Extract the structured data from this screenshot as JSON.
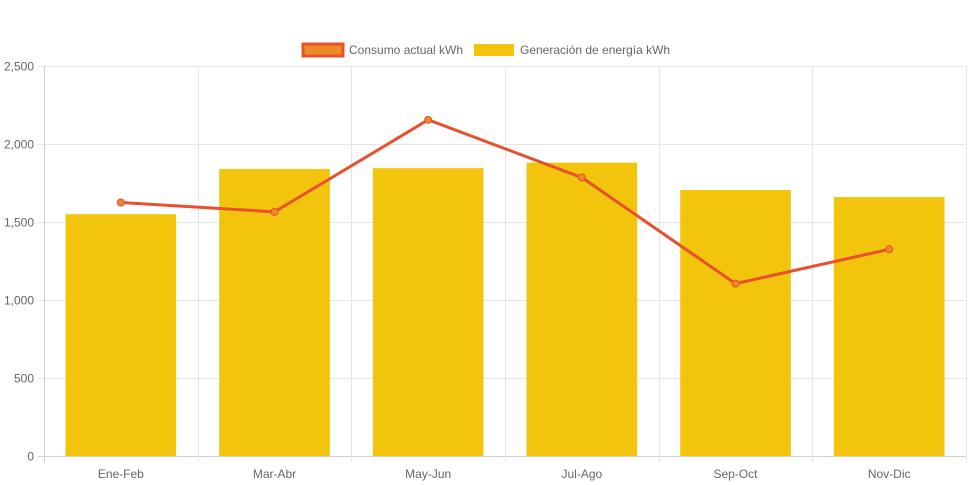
{
  "chart_data": {
    "type": "bar",
    "categories": [
      "Ene-Feb",
      "Mar-Abr",
      "May-Jun",
      "Jul-Ago",
      "Sep-Oct",
      "Nov-Dic"
    ],
    "series": [
      {
        "name": "Consumo actual kWh",
        "type": "line",
        "values": [
          1625,
          1565,
          2155,
          1785,
          1105,
          1325
        ],
        "color": "#e8502e",
        "fill": "#ec8b26"
      },
      {
        "name": "Generación de energía kWh",
        "type": "bar",
        "values": [
          1550,
          1840,
          1845,
          1880,
          1705,
          1660
        ],
        "color": "#f2c50c"
      }
    ],
    "ylim": [
      0,
      2500
    ],
    "yticks": [
      0,
      500,
      1000,
      1500,
      2000,
      2500
    ],
    "ytick_labels": [
      "0",
      "500",
      "1,000",
      "1,500",
      "2,000",
      "2,500"
    ],
    "grid": true,
    "legend_position": "top"
  }
}
